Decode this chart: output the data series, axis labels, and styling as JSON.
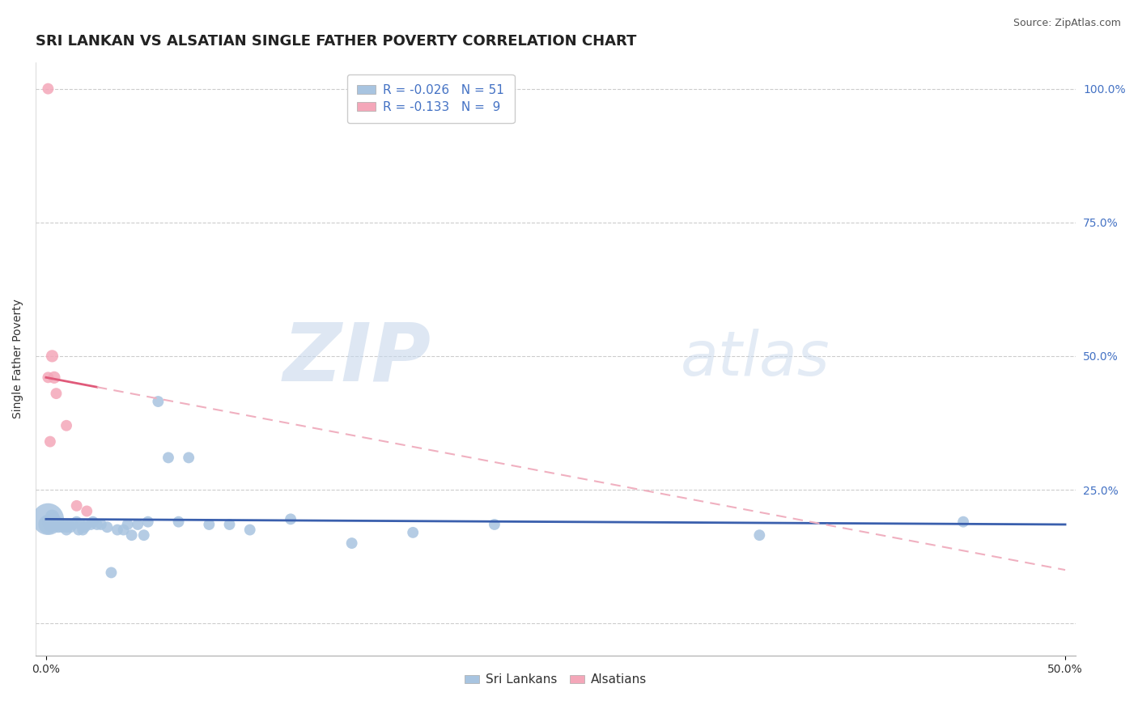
{
  "title": "SRI LANKAN VS ALSATIAN SINGLE FATHER POVERTY CORRELATION CHART",
  "source": "Source: ZipAtlas.com",
  "ylabel": "Single Father Poverty",
  "xlim": [
    -0.005,
    0.505
  ],
  "ylim": [
    -0.06,
    1.05
  ],
  "xticks": [
    0.0,
    0.5
  ],
  "xtick_labels": [
    "0.0%",
    "50.0%"
  ],
  "yticks": [
    0.0,
    0.25,
    0.5,
    0.75,
    1.0
  ],
  "ytick_labels": [
    "",
    "25.0%",
    "50.0%",
    "75.0%",
    "100.0%"
  ],
  "sri_lankan_color": "#a8c4e0",
  "alsatian_color": "#f4a7b9",
  "sri_lankan_line_color": "#3a5fad",
  "alsatian_line_color": "#e05a7a",
  "alsatian_dash_color": "#f0b0c0",
  "background_color": "#ffffff",
  "grid_color": "#cccccc",
  "watermark_zip": "ZIP",
  "watermark_atlas": "atlas",
  "watermark_color_zip": "#c8d8ec",
  "watermark_color_atlas": "#c8d8ec",
  "R_sri": -0.026,
  "N_sri": 51,
  "R_als": -0.133,
  "N_als": 9,
  "legend_label_sri": "Sri Lankans",
  "legend_label_als": "Alsatians",
  "sri_x": [
    0.001,
    0.001,
    0.002,
    0.002,
    0.003,
    0.003,
    0.004,
    0.004,
    0.005,
    0.005,
    0.006,
    0.007,
    0.008,
    0.009,
    0.01,
    0.01,
    0.011,
    0.012,
    0.013,
    0.015,
    0.016,
    0.017,
    0.018,
    0.019,
    0.02,
    0.022,
    0.023,
    0.025,
    0.027,
    0.03,
    0.032,
    0.035,
    0.038,
    0.04,
    0.042,
    0.045,
    0.048,
    0.05,
    0.055,
    0.06,
    0.065,
    0.07,
    0.08,
    0.09,
    0.1,
    0.12,
    0.15,
    0.18,
    0.22,
    0.35,
    0.45
  ],
  "sri_y": [
    0.195,
    0.185,
    0.19,
    0.185,
    0.2,
    0.185,
    0.195,
    0.185,
    0.185,
    0.19,
    0.18,
    0.185,
    0.18,
    0.185,
    0.18,
    0.175,
    0.185,
    0.18,
    0.185,
    0.19,
    0.175,
    0.185,
    0.175,
    0.18,
    0.185,
    0.185,
    0.19,
    0.185,
    0.185,
    0.18,
    0.095,
    0.175,
    0.175,
    0.185,
    0.165,
    0.185,
    0.165,
    0.19,
    0.415,
    0.31,
    0.19,
    0.31,
    0.185,
    0.185,
    0.175,
    0.195,
    0.15,
    0.17,
    0.185,
    0.165,
    0.19
  ],
  "sri_size": [
    800,
    300,
    200,
    150,
    150,
    120,
    120,
    120,
    120,
    120,
    100,
    100,
    100,
    100,
    100,
    100,
    100,
    100,
    100,
    100,
    100,
    100,
    100,
    100,
    100,
    100,
    100,
    100,
    100,
    100,
    100,
    100,
    100,
    100,
    100,
    100,
    100,
    100,
    100,
    100,
    100,
    100,
    100,
    100,
    100,
    100,
    100,
    100,
    100,
    100,
    100
  ],
  "als_x": [
    0.001,
    0.001,
    0.002,
    0.003,
    0.004,
    0.005,
    0.01,
    0.015,
    0.02
  ],
  "als_y": [
    1.0,
    0.46,
    0.34,
    0.5,
    0.46,
    0.43,
    0.37,
    0.22,
    0.21
  ],
  "als_size": [
    100,
    100,
    100,
    120,
    120,
    100,
    100,
    100,
    100
  ],
  "title_fontsize": 13,
  "axis_label_fontsize": 10,
  "tick_fontsize": 10,
  "legend_fontsize": 11
}
